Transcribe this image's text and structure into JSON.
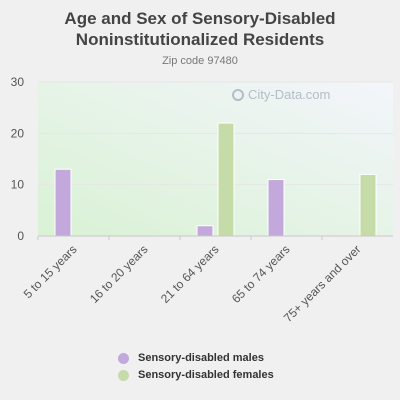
{
  "header": {
    "title_line1": "Age and Sex of Sensory-Disabled",
    "title_line2": "Noninstitutionalized Residents",
    "subtitle": "Zip code 97480"
  },
  "watermark": "City-Data.com",
  "colors": {
    "males": "#c3a8dc",
    "females": "#c5dba8"
  },
  "legend": {
    "males_label": "Sensory-disabled males",
    "females_label": "Sensory-disabled females"
  },
  "chart_data": {
    "type": "bar",
    "title": "Age and Sex of Sensory-Disabled Noninstitutionalized Residents",
    "subtitle": "Zip code 97480",
    "categories": [
      "5 to 15 years",
      "16 to 20 years",
      "21 to 64 years",
      "65 to 74 years",
      "75+ years and over"
    ],
    "series": [
      {
        "name": "Sensory-disabled males",
        "values": [
          13,
          0,
          2,
          11,
          0
        ]
      },
      {
        "name": "Sensory-disabled females",
        "values": [
          0,
          0,
          22,
          0,
          12
        ]
      }
    ],
    "ylim": [
      0,
      30
    ],
    "yticks": [
      0,
      10,
      20,
      30
    ],
    "grid": true,
    "legend_position": "bottom"
  }
}
